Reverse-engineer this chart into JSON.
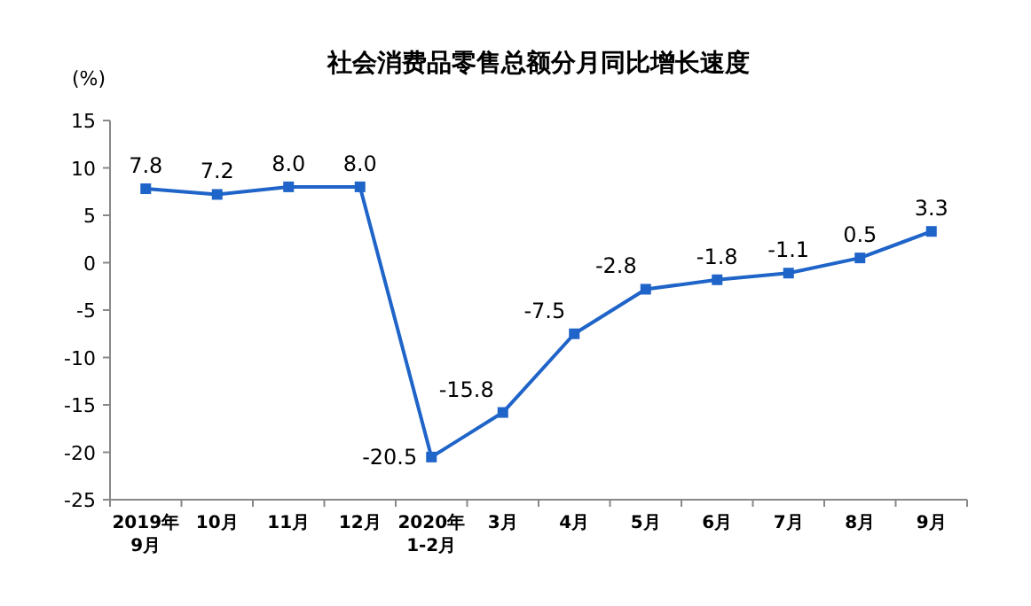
{
  "chart_data": {
    "type": "line",
    "title": "社会消费品零售总额分月同比增长速度",
    "ylabel": "(%)",
    "categories": [
      "2019年\n9月",
      "10月",
      "11月",
      "12月",
      "2020年\n1-2月",
      "3月",
      "4月",
      "5月",
      "6月",
      "7月",
      "8月",
      "9月"
    ],
    "series": [
      {
        "color": "#1f64c8",
        "values": [
          7.8,
          7.2,
          8.0,
          8.0,
          -20.5,
          -15.8,
          -7.5,
          -2.8,
          -1.8,
          -1.1,
          0.5,
          3.3
        ],
        "value_labels": [
          "7.8",
          "7.2",
          "8.0",
          "8.0",
          "-20.5",
          "-15.8",
          "-7.5",
          "-2.8",
          "-1.8",
          "-1.1",
          "0.5",
          "3.3"
        ]
      }
    ],
    "ylim": [
      -25,
      15
    ],
    "yticks": [
      -25,
      -20,
      -15,
      -10,
      -5,
      0,
      5,
      10,
      15
    ],
    "marker": "square",
    "line_style": "solid",
    "grid": false
  }
}
